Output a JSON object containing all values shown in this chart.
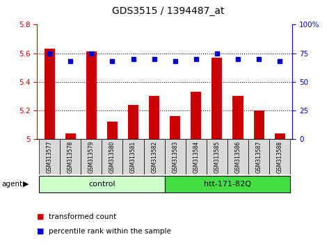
{
  "title": "GDS3515 / 1394487_at",
  "samples": [
    "GSM313577",
    "GSM313578",
    "GSM313579",
    "GSM313580",
    "GSM313581",
    "GSM313582",
    "GSM313583",
    "GSM313584",
    "GSM313585",
    "GSM313586",
    "GSM313587",
    "GSM313588"
  ],
  "transformed_count": [
    5.63,
    5.04,
    5.61,
    5.12,
    5.24,
    5.3,
    5.16,
    5.33,
    5.57,
    5.3,
    5.2,
    5.04
  ],
  "percentile_rank": [
    75,
    68,
    75,
    68,
    70,
    70,
    68,
    70,
    75,
    70,
    70,
    68
  ],
  "ylim_left": [
    5.0,
    5.8
  ],
  "ylim_right": [
    0,
    100
  ],
  "yticks_left": [
    5.0,
    5.2,
    5.4,
    5.6,
    5.8
  ],
  "ytick_labels_left": [
    "5",
    "5.2",
    "5.4",
    "5.6",
    "5.8"
  ],
  "yticks_right": [
    0,
    25,
    50,
    75,
    100
  ],
  "ytick_labels_right": [
    "0",
    "25",
    "50",
    "75",
    "100%"
  ],
  "hlines": [
    5.2,
    5.4,
    5.6
  ],
  "bar_color": "#cc0000",
  "dot_color": "#0000cc",
  "bar_width": 0.5,
  "groups": [
    {
      "label": "control",
      "start": 0,
      "end": 5,
      "color": "#ccffcc"
    },
    {
      "label": "htt-171-82Q",
      "start": 6,
      "end": 11,
      "color": "#44dd44"
    }
  ],
  "agent_label": "agent",
  "legend_bar_label": "transformed count",
  "legend_dot_label": "percentile rank within the sample",
  "left_tick_color": "#cc0000",
  "right_tick_color": "#0000cc",
  "background_color": "#ffffff",
  "tick_label_size": 7.5,
  "title_fontsize": 10
}
